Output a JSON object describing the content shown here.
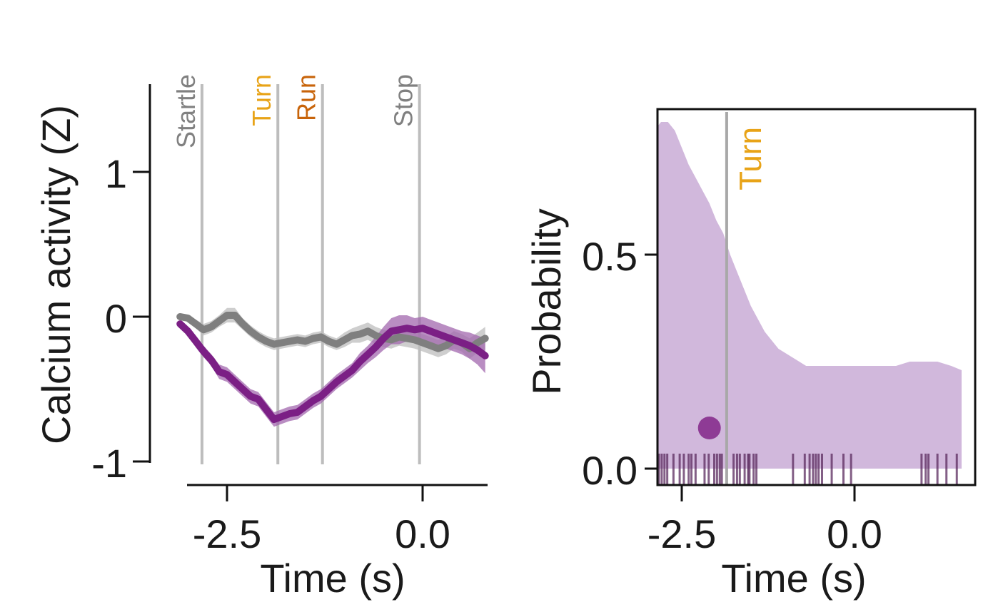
{
  "chart_data": [
    {
      "type": "line",
      "xlabel": "Time (s)",
      "ylabel": "Calcium activity (Z)",
      "xlim": [
        -3.1,
        0.85
      ],
      "ylim": [
        -1.1,
        1.6
      ],
      "xticks": [
        {
          "value": -2.5,
          "label": "-2.5"
        },
        {
          "value": 0.0,
          "label": "0.0"
        }
      ],
      "yticks": [
        {
          "value": -1,
          "label": "-1"
        },
        {
          "value": 0,
          "label": "0"
        },
        {
          "value": 1,
          "label": "1"
        }
      ],
      "events": [
        {
          "label": "Startle",
          "x": -2.82,
          "color": "#808080"
        },
        {
          "label": "Turn",
          "x": -1.85,
          "color": "#e8a317"
        },
        {
          "label": "Run",
          "x": -1.28,
          "color": "#c8640a"
        },
        {
          "label": "Stop",
          "x": -0.04,
          "color": "#808080"
        }
      ],
      "series": [
        {
          "color": "#7b1f85",
          "band_color": "#a267ad",
          "x": [
            -3.1,
            -3.0,
            -2.9,
            -2.8,
            -2.7,
            -2.6,
            -2.5,
            -2.4,
            -2.3,
            -2.2,
            -2.1,
            -2.0,
            -1.9,
            -1.8,
            -1.7,
            -1.6,
            -1.5,
            -1.4,
            -1.3,
            -1.2,
            -1.1,
            -1.0,
            -0.9,
            -0.8,
            -0.7,
            -0.6,
            -0.5,
            -0.4,
            -0.3,
            -0.2,
            -0.1,
            0.0,
            0.1,
            0.2,
            0.3,
            0.4,
            0.5,
            0.6,
            0.7,
            0.8
          ],
          "values": [
            -0.05,
            -0.1,
            -0.17,
            -0.24,
            -0.3,
            -0.38,
            -0.4,
            -0.45,
            -0.5,
            -0.55,
            -0.57,
            -0.64,
            -0.71,
            -0.69,
            -0.67,
            -0.66,
            -0.62,
            -0.58,
            -0.55,
            -0.5,
            -0.45,
            -0.41,
            -0.37,
            -0.31,
            -0.26,
            -0.21,
            -0.15,
            -0.1,
            -0.09,
            -0.08,
            -0.09,
            -0.08,
            -0.1,
            -0.12,
            -0.14,
            -0.16,
            -0.18,
            -0.2,
            -0.23,
            -0.27
          ],
          "error": [
            0.02,
            0.03,
            0.04,
            0.04,
            0.04,
            0.05,
            0.05,
            0.05,
            0.05,
            0.05,
            0.05,
            0.05,
            0.05,
            0.05,
            0.05,
            0.05,
            0.05,
            0.05,
            0.05,
            0.05,
            0.05,
            0.05,
            0.05,
            0.06,
            0.06,
            0.07,
            0.08,
            0.09,
            0.1,
            0.09,
            0.08,
            0.08,
            0.08,
            0.08,
            0.08,
            0.08,
            0.08,
            0.09,
            0.1,
            0.12
          ]
        },
        {
          "color": "#7f7f7f",
          "band_color": "#bdbdbd",
          "x": [
            -3.1,
            -3.0,
            -2.9,
            -2.8,
            -2.7,
            -2.6,
            -2.5,
            -2.4,
            -2.3,
            -2.2,
            -2.1,
            -2.0,
            -1.9,
            -1.8,
            -1.7,
            -1.6,
            -1.5,
            -1.4,
            -1.3,
            -1.2,
            -1.1,
            -1.0,
            -0.9,
            -0.8,
            -0.7,
            -0.6,
            -0.5,
            -0.4,
            -0.3,
            -0.2,
            -0.1,
            0.0,
            0.1,
            0.2,
            0.3,
            0.4,
            0.5,
            0.6,
            0.7,
            0.8
          ],
          "values": [
            0.0,
            -0.01,
            -0.05,
            -0.09,
            -0.07,
            -0.03,
            0.01,
            0.01,
            -0.05,
            -0.1,
            -0.14,
            -0.17,
            -0.19,
            -0.18,
            -0.17,
            -0.16,
            -0.17,
            -0.15,
            -0.14,
            -0.17,
            -0.19,
            -0.16,
            -0.13,
            -0.12,
            -0.1,
            -0.13,
            -0.15,
            -0.16,
            -0.14,
            -0.15,
            -0.16,
            -0.18,
            -0.2,
            -0.22,
            -0.2,
            -0.16,
            -0.18,
            -0.22,
            -0.18,
            -0.15
          ],
          "error": [
            0.02,
            0.02,
            0.03,
            0.04,
            0.04,
            0.04,
            0.05,
            0.05,
            0.04,
            0.04,
            0.04,
            0.04,
            0.04,
            0.04,
            0.04,
            0.04,
            0.04,
            0.04,
            0.04,
            0.04,
            0.04,
            0.05,
            0.05,
            0.06,
            0.06,
            0.06,
            0.06,
            0.06,
            0.06,
            0.06,
            0.06,
            0.06,
            0.06,
            0.06,
            0.06,
            0.06,
            0.06,
            0.07,
            0.07,
            0.08
          ]
        }
      ]
    },
    {
      "type": "area",
      "xlabel": "Time (s)",
      "ylabel": "Probability",
      "xlim": [
        -3.1,
        1.55
      ],
      "ylim": [
        -0.045,
        0.84
      ],
      "xticks": [
        {
          "value": -2.5,
          "label": "-2.5"
        },
        {
          "value": 0.0,
          "label": "0.0"
        }
      ],
      "yticks": [
        {
          "value": 0.0,
          "label": "0.0"
        },
        {
          "value": 0.5,
          "label": "0.5"
        }
      ],
      "fill_color": "#d1b8dc",
      "density": {
        "x": [
          -3.1,
          -3.0,
          -2.9,
          -2.8,
          -2.7,
          -2.6,
          -2.5,
          -2.4,
          -2.3,
          -2.2,
          -2.1,
          -2.0,
          -1.9,
          -1.8,
          -1.7,
          -1.6,
          -1.5,
          -1.4,
          -1.3,
          -1.2,
          -1.1,
          -1.0,
          -0.9,
          -0.8,
          -0.7,
          -0.6,
          -0.5,
          -0.4,
          -0.3,
          -0.2,
          -0.1,
          0.0,
          0.2,
          0.4,
          0.6,
          0.8,
          1.0,
          1.2,
          1.4,
          1.55
        ],
        "values": [
          0.77,
          0.78,
          0.79,
          0.81,
          0.81,
          0.79,
          0.75,
          0.71,
          0.68,
          0.65,
          0.62,
          0.58,
          0.55,
          0.5,
          0.46,
          0.42,
          0.38,
          0.35,
          0.32,
          0.3,
          0.28,
          0.27,
          0.26,
          0.25,
          0.24,
          0.24,
          0.24,
          0.24,
          0.24,
          0.24,
          0.24,
          0.24,
          0.24,
          0.24,
          0.24,
          0.25,
          0.25,
          0.25,
          0.24,
          0.23
        ]
      },
      "events": [
        {
          "label": "Turn",
          "x": -1.85,
          "color": "#e8a317"
        }
      ],
      "marker": {
        "x": -2.1,
        "y": 0.095,
        "color": "#8e3b95"
      },
      "rug": [
        -3.07,
        -3.04,
        -3.02,
        -2.99,
        -2.96,
        -2.93,
        -2.88,
        -2.83,
        -2.79,
        -2.75,
        -2.71,
        -2.62,
        -2.53,
        -2.47,
        -2.4,
        -2.36,
        -2.3,
        -2.17,
        -2.11,
        -2.03,
        -1.99,
        -1.95,
        -1.92,
        -1.75,
        -1.7,
        -1.66,
        -1.59,
        -1.54,
        -1.52,
        -1.46,
        -1.42,
        -0.89,
        -0.72,
        -0.65,
        -0.6,
        -0.56,
        -0.52,
        -0.47,
        -0.33,
        -0.16,
        -0.05,
        0.97,
        1.03,
        1.07,
        1.2,
        1.33,
        1.48
      ]
    }
  ]
}
